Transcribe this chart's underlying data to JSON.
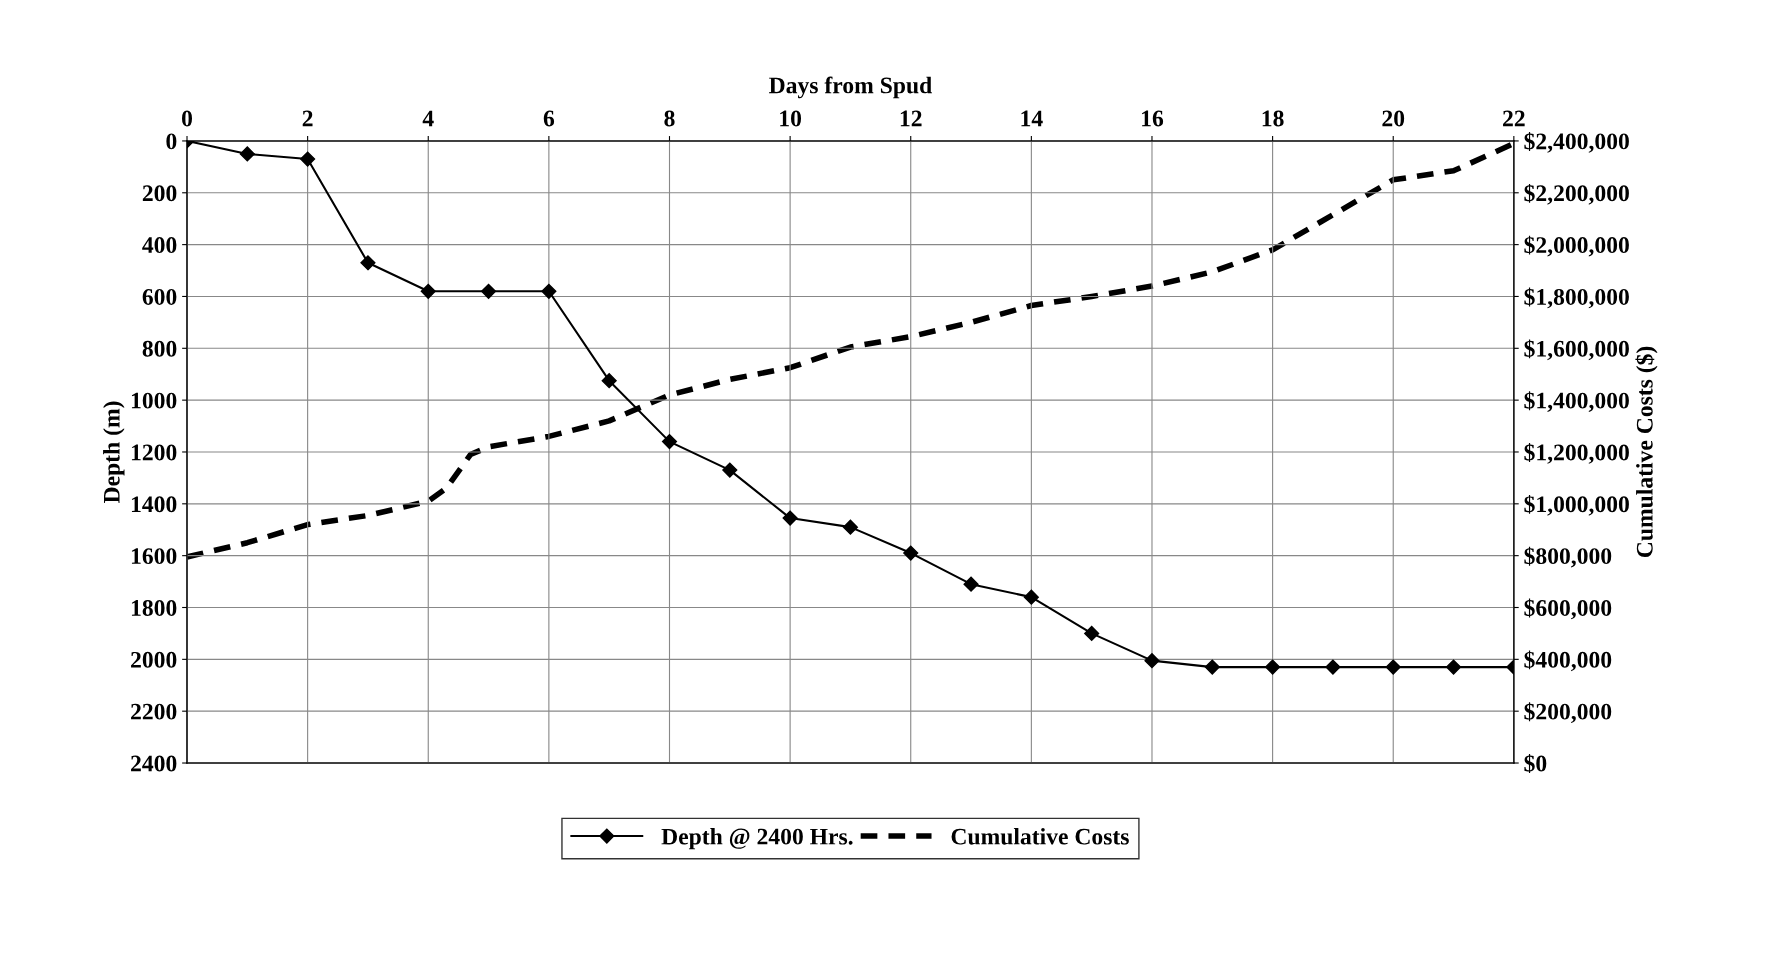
{
  "chart_data": {
    "type": "line",
    "xlabel": "Days from Spud",
    "ylabel": "Depth (m)",
    "y2label": "Cumulative Costs ($)",
    "xlim": [
      0,
      22
    ],
    "xticks": [
      0,
      2,
      4,
      6,
      8,
      10,
      12,
      14,
      16,
      18,
      20,
      22
    ],
    "ylim": [
      2400,
      0
    ],
    "yticks": [
      0,
      200,
      400,
      600,
      800,
      1000,
      1200,
      1400,
      1600,
      1800,
      2000,
      2200,
      2400
    ],
    "y2lim": [
      0,
      2400000
    ],
    "y2ticks": [
      {
        "value": 0,
        "label": "$0"
      },
      {
        "value": 200000,
        "label": "$200,000"
      },
      {
        "value": 400000,
        "label": "$400,000"
      },
      {
        "value": 600000,
        "label": "$600,000"
      },
      {
        "value": 800000,
        "label": "$800,000"
      },
      {
        "value": 1000000,
        "label": "$1,000,000"
      },
      {
        "value": 1200000,
        "label": "$1,200,000"
      },
      {
        "value": 1400000,
        "label": "$1,400,000"
      },
      {
        "value": 1600000,
        "label": "$1,600,000"
      },
      {
        "value": 1800000,
        "label": "$1,800,000"
      },
      {
        "value": 2000000,
        "label": "$2,000,000"
      },
      {
        "value": 2200000,
        "label": "$2,200,000"
      },
      {
        "value": 2400000,
        "label": "$2,400,000"
      }
    ],
    "grid": true,
    "legend": "bottom",
    "series": [
      {
        "name": "Depth @ 2400 Hrs.",
        "color": "#000000",
        "marker": "diamond",
        "line_style": "solid",
        "x": [
          0,
          1,
          2,
          3,
          4,
          5,
          6,
          7,
          8,
          9,
          10,
          11,
          12,
          13,
          14,
          15,
          16,
          17,
          18,
          19,
          20,
          21,
          22
        ],
        "values": [
          0,
          50,
          70,
          470,
          580,
          580,
          580,
          925,
          1160,
          1270,
          1455,
          1490,
          1590,
          1710,
          1760,
          1900,
          2005,
          2030,
          2030,
          2030,
          2030,
          2030,
          2030
        ]
      },
      {
        "name": "Cumulative Costs",
        "color": "#000000",
        "marker": "none",
        "line_style": "dashed",
        "axis": "y2",
        "x": [
          0,
          1,
          2,
          3,
          4,
          4.3,
          4.7,
          5,
          6,
          7,
          8,
          9,
          10,
          11,
          12,
          13,
          14,
          15,
          16,
          17,
          18,
          19,
          20,
          21,
          22
        ],
        "values": [
          795000,
          850000,
          920000,
          955000,
          1010000,
          1060000,
          1190000,
          1220000,
          1260000,
          1320000,
          1420000,
          1480000,
          1525000,
          1605000,
          1645000,
          1700000,
          1765000,
          1800000,
          1840000,
          1895000,
          1980000,
          2115000,
          2250000,
          2285000,
          2390000
        ]
      }
    ]
  }
}
